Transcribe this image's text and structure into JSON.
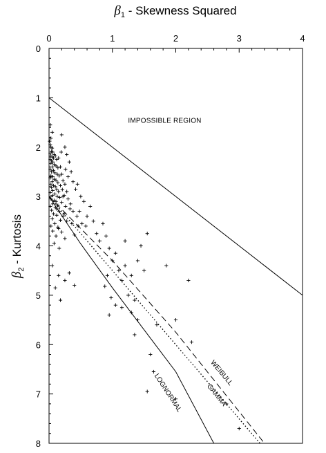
{
  "chart_data": {
    "type": "scatter",
    "title": "",
    "xlabel": {
      "symbol": "β",
      "subscript": "1",
      "text": " - Skewness Squared"
    },
    "ylabel": {
      "symbol": "β",
      "subscript": "2",
      "text": " - Kurtosis"
    },
    "xlim": [
      0,
      4
    ],
    "ylim": [
      0,
      8
    ],
    "y_inverted": true,
    "x_axis_position": "top",
    "x_ticks": [
      {
        "value": 0,
        "label": "0"
      },
      {
        "value": 1,
        "label": "1"
      },
      {
        "value": 2,
        "label": "2"
      },
      {
        "value": 3,
        "label": "3"
      },
      {
        "value": 4,
        "label": "4"
      }
    ],
    "y_ticks": [
      {
        "value": 0,
        "label": "0"
      },
      {
        "value": 1,
        "label": "1"
      },
      {
        "value": 2,
        "label": "2"
      },
      {
        "value": 3,
        "label": "3"
      },
      {
        "value": 4,
        "label": "4"
      },
      {
        "value": 5,
        "label": "5"
      },
      {
        "value": 6,
        "label": "6"
      },
      {
        "value": 7,
        "label": "7"
      },
      {
        "value": 8,
        "label": "8"
      }
    ],
    "grid": false,
    "marker": "+",
    "annotations": [
      {
        "text": "IMPOSSIBLE REGION",
        "x": 2.0,
        "y": 1.45
      }
    ],
    "lines": [
      {
        "label": "",
        "style": "solid",
        "points": [
          [
            0,
            1
          ],
          [
            4,
            5
          ]
        ]
      },
      {
        "label": "LOGNORMAL",
        "style": "solid",
        "points": [
          [
            0,
            3
          ],
          [
            0.5,
            3.96
          ],
          [
            1.0,
            4.85
          ],
          [
            1.5,
            5.7
          ],
          [
            2.0,
            6.55
          ],
          [
            2.6,
            8.0
          ]
        ]
      },
      {
        "label": "GAMMA",
        "style": "dotted",
        "points": [
          [
            0,
            3
          ],
          [
            1.0,
            4.5
          ],
          [
            2.0,
            6.0
          ],
          [
            3.33,
            8.0
          ]
        ]
      },
      {
        "label": "WEIBULL",
        "style": "dashed",
        "points": [
          [
            0,
            3
          ],
          [
            0.5,
            3.65
          ],
          [
            1.0,
            4.3
          ],
          [
            2.0,
            5.75
          ],
          [
            3.4,
            8.0
          ]
        ]
      }
    ],
    "points": [
      [
        0.02,
        1.95
      ],
      [
        0.03,
        2.0
      ],
      [
        0.05,
        2.02
      ],
      [
        0.04,
        2.08
      ],
      [
        0.06,
        2.1
      ],
      [
        0.02,
        2.12
      ],
      [
        0.08,
        2.15
      ],
      [
        0.03,
        2.18
      ],
      [
        0.05,
        2.2
      ],
      [
        0.07,
        2.22
      ],
      [
        0.1,
        2.18
      ],
      [
        0.02,
        2.25
      ],
      [
        0.04,
        2.28
      ],
      [
        0.06,
        2.3
      ],
      [
        0.12,
        2.25
      ],
      [
        0.15,
        2.22
      ],
      [
        0.03,
        2.33
      ],
      [
        0.08,
        2.35
      ],
      [
        0.11,
        2.38
      ],
      [
        0.05,
        2.4
      ],
      [
        0.14,
        2.42
      ],
      [
        0.02,
        2.45
      ],
      [
        0.07,
        2.47
      ],
      [
        0.18,
        2.4
      ],
      [
        0.04,
        2.5
      ],
      [
        0.09,
        2.52
      ],
      [
        0.13,
        2.55
      ],
      [
        0.03,
        2.58
      ],
      [
        0.06,
        2.6
      ],
      [
        0.16,
        2.58
      ],
      [
        0.2,
        2.55
      ],
      [
        0.02,
        2.62
      ],
      [
        0.08,
        2.65
      ],
      [
        0.11,
        2.67
      ],
      [
        0.05,
        2.7
      ],
      [
        0.14,
        2.72
      ],
      [
        0.22,
        2.68
      ],
      [
        0.03,
        2.75
      ],
      [
        0.07,
        2.78
      ],
      [
        0.1,
        2.8
      ],
      [
        0.18,
        2.78
      ],
      [
        0.25,
        2.75
      ],
      [
        0.04,
        2.82
      ],
      [
        0.12,
        2.85
      ],
      [
        0.06,
        2.88
      ],
      [
        0.15,
        2.9
      ],
      [
        0.21,
        2.86
      ],
      [
        0.02,
        2.92
      ],
      [
        0.09,
        2.95
      ],
      [
        0.28,
        2.9
      ],
      [
        0.05,
        2.98
      ],
      [
        0.13,
        3.0
      ],
      [
        0.17,
        3.02
      ],
      [
        0.24,
        2.98
      ],
      [
        0.03,
        3.05
      ],
      [
        0.08,
        3.08
      ],
      [
        0.11,
        3.1
      ],
      [
        0.2,
        3.12
      ],
      [
        0.3,
        3.05
      ],
      [
        0.06,
        3.15
      ],
      [
        0.14,
        3.18
      ],
      [
        0.02,
        3.2
      ],
      [
        0.1,
        3.22
      ],
      [
        0.26,
        3.2
      ],
      [
        0.04,
        3.28
      ],
      [
        0.16,
        3.3
      ],
      [
        0.33,
        3.25
      ],
      [
        0.07,
        3.35
      ],
      [
        0.12,
        3.38
      ],
      [
        0.22,
        3.4
      ],
      [
        0.05,
        3.45
      ],
      [
        0.18,
        3.48
      ],
      [
        0.09,
        3.55
      ],
      [
        0.28,
        3.5
      ],
      [
        0.03,
        3.6
      ],
      [
        0.14,
        3.62
      ],
      [
        0.36,
        3.55
      ],
      [
        0.06,
        3.7
      ],
      [
        0.2,
        3.72
      ],
      [
        0.11,
        3.8
      ],
      [
        0.25,
        3.85
      ],
      [
        0.4,
        3.78
      ],
      [
        0.08,
        3.95
      ],
      [
        0.16,
        4.05
      ],
      [
        0.02,
        1.55
      ],
      [
        0.05,
        1.7
      ],
      [
        0.03,
        1.82
      ],
      [
        0.01,
        1.88
      ],
      [
        0.2,
        1.75
      ],
      [
        0.25,
        2.0
      ],
      [
        0.28,
        2.15
      ],
      [
        0.32,
        2.3
      ],
      [
        0.35,
        2.5
      ],
      [
        0.3,
        2.6
      ],
      [
        0.38,
        2.7
      ],
      [
        0.42,
        2.85
      ],
      [
        0.45,
        2.75
      ],
      [
        0.5,
        3.0
      ],
      [
        0.55,
        3.1
      ],
      [
        0.48,
        3.3
      ],
      [
        0.6,
        3.4
      ],
      [
        0.65,
        3.2
      ],
      [
        0.58,
        3.6
      ],
      [
        0.7,
        3.5
      ],
      [
        0.75,
        3.75
      ],
      [
        0.85,
        3.55
      ],
      [
        0.9,
        3.8
      ],
      [
        0.8,
        3.9
      ],
      [
        0.95,
        4.05
      ],
      [
        1.0,
        4.3
      ],
      [
        1.05,
        4.15
      ],
      [
        1.1,
        4.5
      ],
      [
        1.2,
        4.4
      ],
      [
        1.15,
        4.7
      ],
      [
        1.3,
        4.6
      ],
      [
        0.92,
        4.6
      ],
      [
        0.88,
        4.82
      ],
      [
        0.98,
        5.05
      ],
      [
        1.05,
        5.2
      ],
      [
        1.15,
        5.25
      ],
      [
        0.95,
        5.4
      ],
      [
        1.25,
        5.0
      ],
      [
        1.35,
        5.1
      ],
      [
        1.4,
        4.3
      ],
      [
        1.5,
        4.5
      ],
      [
        1.55,
        3.75
      ],
      [
        1.2,
        3.9
      ],
      [
        1.45,
        4.0
      ],
      [
        0.05,
        4.4
      ],
      [
        0.15,
        4.6
      ],
      [
        0.1,
        4.85
      ],
      [
        0.25,
        4.7
      ],
      [
        0.32,
        4.55
      ],
      [
        0.4,
        4.8
      ],
      [
        0.18,
        5.1
      ],
      [
        1.3,
        5.35
      ],
      [
        1.4,
        5.5
      ],
      [
        1.7,
        5.6
      ],
      [
        1.85,
        4.4
      ],
      [
        2.2,
        4.7
      ],
      [
        2.0,
        5.5
      ],
      [
        2.25,
        5.95
      ],
      [
        1.35,
        5.8
      ],
      [
        1.6,
        6.2
      ],
      [
        1.65,
        6.55
      ],
      [
        1.55,
        6.95
      ],
      [
        2.0,
        7.1
      ],
      [
        2.8,
        7.2
      ],
      [
        3.0,
        7.7
      ],
      [
        0.12,
        3.25
      ],
      [
        0.22,
        3.0
      ],
      [
        0.34,
        3.15
      ],
      [
        0.44,
        3.4
      ],
      [
        0.52,
        3.55
      ],
      [
        0.38,
        3.3
      ],
      [
        0.46,
        3.6
      ],
      [
        0.26,
        2.45
      ],
      [
        0.19,
        2.1
      ],
      [
        0.24,
        3.35
      ],
      [
        0.15,
        3.65
      ]
    ]
  }
}
